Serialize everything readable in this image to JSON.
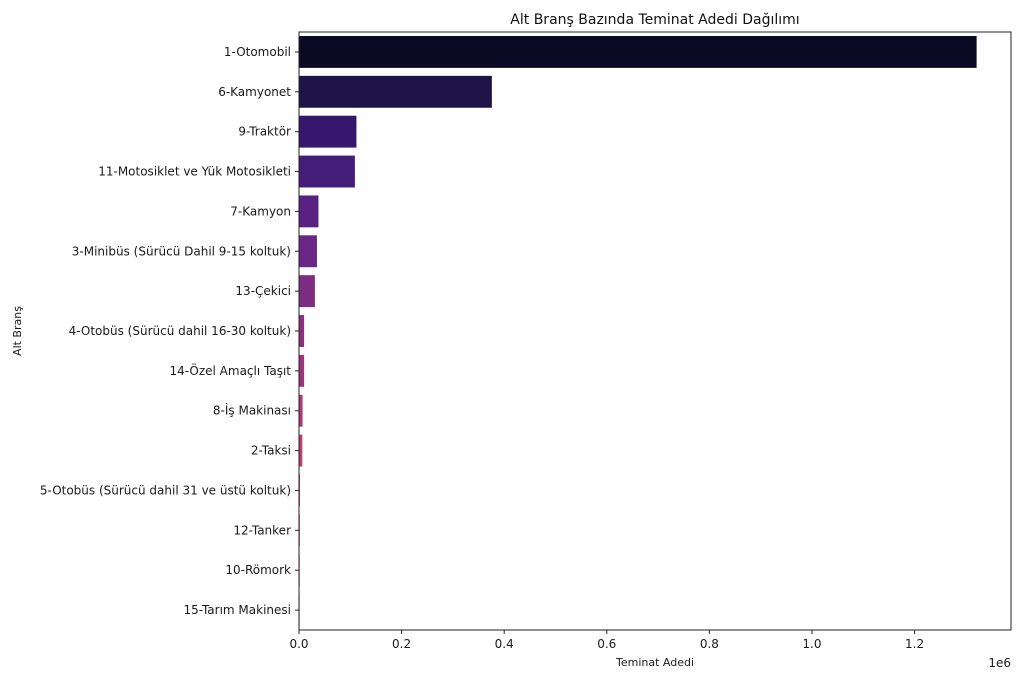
{
  "chart_data": {
    "type": "bar",
    "orientation": "horizontal",
    "title": "Alt Branş Bazında Teminat Adedi Dağılımı",
    "xlabel": "Teminat Adedi",
    "ylabel": "Alt Branş",
    "x_offset_label": "1e6",
    "x_scale_factor": 1000000,
    "xlim": [
      0,
      1388000
    ],
    "x_ticks": [
      0,
      200000,
      400000,
      600000,
      800000,
      1000000,
      1200000
    ],
    "x_tick_labels": [
      "0.0",
      "0.2",
      "0.4",
      "0.6",
      "0.8",
      "1.0",
      "1.2"
    ],
    "grid": false,
    "legend": "none",
    "categories": [
      "1-Otomobil",
      "6-Kamyonet",
      "9-Traktör",
      "11-Motosiklet ve Yük Motosikleti",
      "7-Kamyon",
      "3-Minibüs (Sürücü Dahil 9-15 koltuk)",
      "13-Çekici",
      "4-Otobüs (Sürücü dahil 16-30 koltuk)",
      "14-Özel Amaçlı Taşıt",
      "8-İş Makinası",
      "2-Taksi",
      "5-Otobüs (Sürücü dahil 31 ve üstü koltuk)",
      "12-Tanker",
      "10-Römork",
      "15-Tarım Makinesi"
    ],
    "values": [
      1320000,
      375000,
      111000,
      108000,
      37000,
      34000,
      30000,
      9000,
      9000,
      6000,
      5500,
      1000,
      700,
      500,
      300
    ],
    "colors": [
      "#0b0924",
      "#1e1448",
      "#35176e",
      "#461c7b",
      "#5a2184",
      "#6a2684",
      "#7c2c81",
      "#8c2f7f",
      "#9c357c",
      "#ad3a76",
      "#bd4070",
      "#c8466a",
      "#d34e66",
      "#dc5864",
      "#e46463"
    ]
  }
}
